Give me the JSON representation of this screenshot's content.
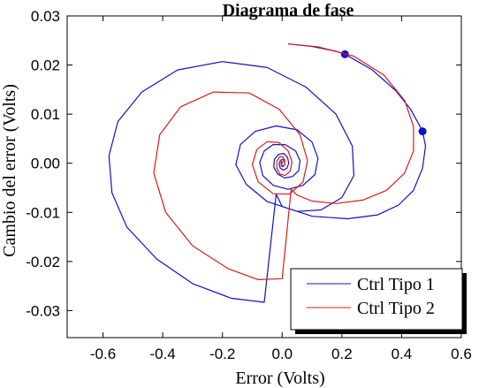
{
  "chart_data": {
    "type": "line",
    "title": "Diagrama de fase",
    "xlabel": "Error (Volts)",
    "ylabel": "Cambio del error (Volts)",
    "xlim": [
      -0.72,
      0.6
    ],
    "ylim": [
      -0.0355,
      0.03
    ],
    "xticks": [
      -0.6,
      -0.4,
      -0.2,
      0.0,
      0.2,
      0.4,
      0.6
    ],
    "xtick_labels": [
      "-0.6",
      "-0.4",
      "-0.2",
      "0.0",
      "0.2",
      "0.4",
      "0.6"
    ],
    "yticks": [
      -0.03,
      -0.02,
      -0.01,
      0.0,
      0.01,
      0.02,
      0.03
    ],
    "ytick_labels": [
      "-0.03",
      "-0.02",
      "-0.01",
      "0.00",
      "0.01",
      "0.02",
      "0.03"
    ],
    "grid": false,
    "legend_position": "bottom-right",
    "series": [
      {
        "name": "Ctrl Tipo 1",
        "color": "#1010c8",
        "points": [
          [
            0.02,
            0.0243
          ],
          [
            0.1,
            0.0238
          ],
          [
            0.18,
            0.0228
          ],
          [
            0.21,
            0.0222
          ],
          [
            0.3,
            0.0191
          ],
          [
            0.38,
            0.0148
          ],
          [
            0.43,
            0.011
          ],
          [
            0.46,
            0.0077
          ],
          [
            0.47,
            0.0065
          ],
          [
            0.48,
            0.0035
          ],
          [
            0.47,
            -0.001
          ],
          [
            0.44,
            -0.0055
          ],
          [
            0.39,
            -0.0085
          ],
          [
            0.32,
            -0.0105
          ],
          [
            0.22,
            -0.0113
          ],
          [
            0.1,
            -0.0108
          ],
          [
            0.0,
            -0.0088
          ],
          [
            -0.02,
            -0.0063
          ],
          [
            -0.06,
            -0.0283
          ],
          [
            -0.06,
            -0.0283
          ],
          [
            -0.17,
            -0.0275
          ],
          [
            -0.3,
            -0.0245
          ],
          [
            -0.42,
            -0.0195
          ],
          [
            -0.52,
            -0.013
          ],
          [
            -0.57,
            -0.006
          ],
          [
            -0.58,
            0.0015
          ],
          [
            -0.55,
            0.0085
          ],
          [
            -0.47,
            0.0145
          ],
          [
            -0.35,
            0.019
          ],
          [
            -0.2,
            0.0207
          ],
          [
            -0.05,
            0.0195
          ],
          [
            0.08,
            0.0155
          ],
          [
            0.18,
            0.01
          ],
          [
            0.235,
            0.0035
          ],
          [
            0.24,
            -0.0025
          ],
          [
            0.2,
            -0.007
          ],
          [
            0.13,
            -0.0095
          ],
          [
            0.05,
            -0.0098
          ],
          [
            -0.05,
            -0.0078
          ],
          [
            -0.12,
            -0.0043
          ],
          [
            -0.155,
            -0.0003
          ],
          [
            -0.14,
            0.0038
          ],
          [
            -0.09,
            0.0065
          ],
          [
            -0.02,
            0.0076
          ],
          [
            0.05,
            0.0068
          ],
          [
            0.1,
            0.0043
          ],
          [
            0.12,
            0.001
          ],
          [
            0.11,
            -0.0023
          ],
          [
            0.07,
            -0.0045
          ],
          [
            0.02,
            -0.0053
          ],
          [
            -0.03,
            -0.0045
          ],
          [
            -0.065,
            -0.0025
          ],
          [
            -0.075,
            0.0002
          ],
          [
            -0.06,
            0.0025
          ],
          [
            -0.03,
            0.0038
          ],
          [
            0.01,
            0.0038
          ],
          [
            0.045,
            0.0025
          ],
          [
            0.06,
            0.0005
          ],
          [
            0.055,
            -0.0015
          ],
          [
            0.035,
            -0.0027
          ],
          [
            0.008,
            -0.003
          ],
          [
            -0.015,
            -0.0022
          ],
          [
            -0.028,
            -0.0008
          ],
          [
            -0.026,
            0.0008
          ],
          [
            -0.012,
            0.0018
          ],
          [
            0.005,
            0.002
          ],
          [
            0.018,
            0.0012
          ],
          [
            0.022,
            0.0
          ],
          [
            0.016,
            -0.001
          ],
          [
            0.004,
            -0.0014
          ],
          [
            -0.006,
            -0.001
          ],
          [
            -0.01,
            -0.0002
          ],
          [
            -0.006,
            0.0006
          ],
          [
            0.002,
            0.0008
          ],
          [
            0.008,
            0.0004
          ],
          [
            0.009,
            -0.0002
          ],
          [
            0.004,
            -0.0006
          ],
          [
            -0.001,
            -0.0004
          ],
          [
            -0.003,
            0.0
          ],
          [
            -0.001,
            0.0003
          ],
          [
            0.002,
            0.0002
          ],
          [
            0.0,
            0.0
          ]
        ],
        "markers": [
          [
            0.21,
            0.0222
          ],
          [
            0.47,
            0.0065
          ]
        ]
      },
      {
        "name": "Ctrl Tipo 2",
        "color": "#e01818",
        "points": [
          [
            0.02,
            0.0243
          ],
          [
            0.12,
            0.0237
          ],
          [
            0.24,
            0.0218
          ],
          [
            0.34,
            0.018
          ],
          [
            0.41,
            0.0128
          ],
          [
            0.44,
            0.0075
          ],
          [
            0.44,
            0.0025
          ],
          [
            0.41,
            -0.002
          ],
          [
            0.35,
            -0.0055
          ],
          [
            0.27,
            -0.0075
          ],
          [
            0.18,
            -0.0082
          ],
          [
            0.1,
            -0.0077
          ],
          [
            0.05,
            -0.0065
          ],
          [
            0.03,
            -0.0053
          ],
          [
            0.0,
            -0.0235
          ],
          [
            0.0,
            -0.0235
          ],
          [
            -0.08,
            -0.0237
          ],
          [
            -0.18,
            -0.0215
          ],
          [
            -0.3,
            -0.0168
          ],
          [
            -0.39,
            -0.01
          ],
          [
            -0.43,
            -0.002
          ],
          [
            -0.41,
            0.0058
          ],
          [
            -0.34,
            0.0115
          ],
          [
            -0.23,
            0.0145
          ],
          [
            -0.11,
            0.0143
          ],
          [
            -0.01,
            0.011
          ],
          [
            0.06,
            0.0058
          ],
          [
            0.085,
            0.0005
          ],
          [
            0.07,
            -0.0038
          ],
          [
            0.025,
            -0.0063
          ],
          [
            -0.03,
            -0.0062
          ],
          [
            -0.08,
            -0.0038
          ],
          [
            -0.1,
            -0.0003
          ],
          [
            -0.085,
            0.0028
          ],
          [
            -0.05,
            0.0044
          ],
          [
            -0.01,
            0.0042
          ],
          [
            0.02,
            0.0025
          ],
          [
            0.033,
            0.0003
          ],
          [
            0.027,
            -0.0016
          ],
          [
            0.01,
            -0.0025
          ],
          [
            -0.008,
            -0.0022
          ],
          [
            -0.018,
            -0.001
          ],
          [
            -0.017,
            0.0005
          ],
          [
            -0.008,
            0.0013
          ],
          [
            0.003,
            0.0013
          ],
          [
            0.009,
            0.0006
          ],
          [
            0.009,
            -0.0002
          ],
          [
            0.004,
            -0.0007
          ],
          [
            -0.002,
            -0.0006
          ],
          [
            -0.004,
            0.0
          ],
          [
            -0.002,
            0.0004
          ],
          [
            0.001,
            0.0003
          ],
          [
            0.0,
            0.0
          ]
        ]
      }
    ]
  }
}
